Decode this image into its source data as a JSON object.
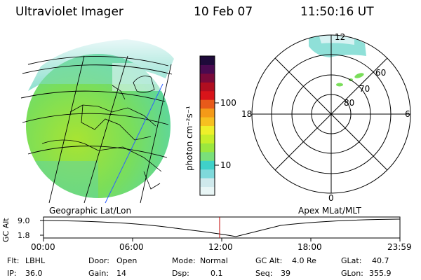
{
  "header": {
    "instrument": "Ultraviolet Imager",
    "date": "10 Feb 07",
    "time": "11:50:16 UT"
  },
  "colorbar": {
    "unit_label": "photon cm⁻²s⁻¹",
    "ticks": [
      "100",
      "10"
    ],
    "colors": [
      "#e9f6f6",
      "#cfe9ec",
      "#7fd9db",
      "#3fd1c9",
      "#7ae07a",
      "#9be73e",
      "#c6ee2a",
      "#eef02a",
      "#f6c020",
      "#f49a18",
      "#e85a1a",
      "#d8141a",
      "#b00e20",
      "#7a0a3a",
      "#4a0a50",
      "#1e0a3a"
    ]
  },
  "polar_plot": {
    "hour_labels": [
      "12",
      "18",
      "6",
      "0"
    ],
    "lat_labels": [
      "60",
      "70",
      "80"
    ]
  },
  "geo_label": "Geographic Lat/Lon",
  "apex_label": "Apex MLat/MLT",
  "timeline": {
    "y_axis_label": "GC Alt",
    "y_ticks": [
      "9.0",
      "1.8"
    ],
    "x_ticks": [
      "00:00",
      "06:00",
      "12:00",
      "18:00",
      "23:59"
    ],
    "current_marker_color": "#c00000"
  },
  "status": {
    "flt_label": "Flt:",
    "flt_value": "LBHL",
    "ip_label": "IP:",
    "ip_value": "36.0",
    "door_label": "Door:",
    "door_value": "Open",
    "gain_label": "Gain:",
    "gain_value": "14",
    "mode_label": "Mode:",
    "mode_value": "Normal",
    "dsp_label": "Dsp:",
    "dsp_value": "0.1",
    "gcalt_label": "GC Alt:",
    "gcalt_value": "4.0 Re",
    "seq_label": "Seq:",
    "seq_value": "39",
    "glat_label": "GLat:",
    "glat_value": "40.7",
    "glon_label": "GLon:",
    "glon_value": "355.9"
  }
}
